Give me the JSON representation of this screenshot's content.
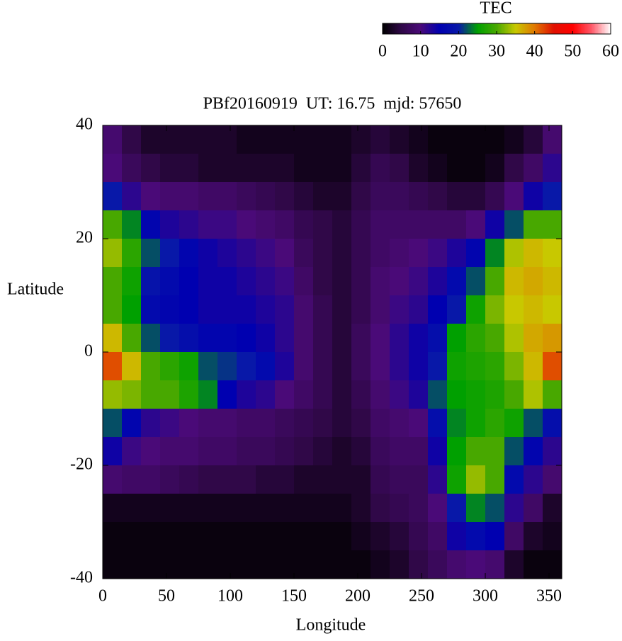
{
  "chart_data": {
    "type": "heatmap",
    "title": "PBf20160919  UT: 16.75  mjd: 57650",
    "x_label": "Longitude",
    "y_label": "Latitude",
    "colorbar_label": "TEC",
    "x": [
      7.5,
      22.5,
      37.5,
      52.5,
      67.5,
      82.5,
      97.5,
      112.5,
      127.5,
      142.5,
      157.5,
      172.5,
      187.5,
      202.5,
      217.5,
      232.5,
      247.5,
      262.5,
      277.5,
      292.5,
      307.5,
      322.5,
      337.5,
      352.5
    ],
    "y": [
      37.5,
      32.5,
      27.5,
      22.5,
      17.5,
      12.5,
      7.5,
      2.5,
      -2.5,
      -7.5,
      -12.5,
      -17.5,
      -22.5,
      -27.5,
      -32.5,
      -37.5
    ],
    "z": [
      [
        9,
        5,
        3,
        3,
        3,
        3,
        3,
        2,
        2,
        2,
        2,
        2,
        2,
        3,
        4,
        3,
        2,
        1,
        1,
        1,
        1,
        2,
        4,
        9
      ],
      [
        10,
        7,
        5,
        4,
        4,
        3,
        3,
        3,
        3,
        3,
        2,
        2,
        2,
        4,
        6,
        5,
        3,
        2,
        1,
        1,
        2,
        5,
        8,
        12
      ],
      [
        20,
        12,
        10,
        9,
        9,
        8,
        8,
        7,
        6,
        5,
        4,
        3,
        3,
        5,
        7,
        7,
        6,
        5,
        4,
        4,
        6,
        10,
        14,
        20
      ],
      [
        30,
        24,
        16,
        13,
        12,
        11,
        11,
        10,
        9,
        8,
        6,
        5,
        4,
        6,
        8,
        8,
        8,
        8,
        8,
        10,
        14,
        22,
        30,
        30
      ],
      [
        33,
        28,
        22,
        20,
        16,
        14,
        13,
        12,
        11,
        10,
        7,
        5,
        4,
        6,
        8,
        9,
        10,
        11,
        13,
        16,
        24,
        34,
        36,
        35
      ],
      [
        30,
        26,
        19,
        17,
        15,
        14,
        14,
        13,
        12,
        11,
        8,
        5,
        4,
        6,
        9,
        10,
        11,
        13,
        17,
        22,
        30,
        36,
        37,
        36
      ],
      [
        30,
        25,
        17,
        16,
        15,
        14,
        14,
        14,
        13,
        12,
        9,
        6,
        4,
        6,
        9,
        11,
        12,
        15,
        20,
        26,
        32,
        35,
        36,
        35
      ],
      [
        36,
        30,
        22,
        20,
        18,
        16,
        16,
        15,
        14,
        12,
        9,
        6,
        4,
        7,
        10,
        12,
        14,
        18,
        25,
        28,
        30,
        34,
        37,
        38
      ],
      [
        42,
        36,
        30,
        28,
        26,
        22,
        21,
        20,
        17,
        13,
        9,
        6,
        4,
        7,
        10,
        12,
        14,
        20,
        26,
        27,
        28,
        32,
        36,
        42
      ],
      [
        33,
        32,
        30,
        30,
        27,
        24,
        15,
        13,
        12,
        10,
        8,
        6,
        4,
        6,
        9,
        11,
        13,
        22,
        25,
        26,
        27,
        30,
        34,
        30
      ],
      [
        22,
        16,
        12,
        11,
        10,
        9,
        9,
        8,
        8,
        7,
        6,
        5,
        4,
        5,
        8,
        9,
        10,
        18,
        24,
        26,
        28,
        26,
        22,
        18
      ],
      [
        14,
        11,
        10,
        9,
        9,
        8,
        8,
        7,
        7,
        6,
        5,
        4,
        3,
        4,
        7,
        8,
        8,
        14,
        25,
        30,
        30,
        22,
        16,
        12
      ],
      [
        9,
        8,
        8,
        7,
        6,
        5,
        5,
        5,
        4,
        4,
        3,
        3,
        3,
        3,
        6,
        7,
        7,
        12,
        26,
        33,
        30,
        17,
        12,
        9
      ],
      [
        2,
        2,
        2,
        2,
        2,
        2,
        2,
        2,
        2,
        2,
        2,
        2,
        2,
        3,
        5,
        6,
        7,
        10,
        20,
        24,
        22,
        12,
        8,
        3
      ],
      [
        1,
        1,
        1,
        1,
        1,
        1,
        1,
        1,
        1,
        1,
        1,
        1,
        1,
        2,
        3,
        4,
        6,
        8,
        14,
        17,
        15,
        8,
        3,
        2
      ],
      [
        1,
        1,
        1,
        1,
        1,
        1,
        1,
        1,
        1,
        1,
        1,
        1,
        1,
        1,
        2,
        3,
        5,
        7,
        9,
        10,
        9,
        3,
        1,
        1
      ]
    ],
    "xlim": [
      0,
      360
    ],
    "xticks": [
      0,
      50,
      100,
      150,
      200,
      250,
      300,
      350
    ],
    "ylim": [
      -40,
      40
    ],
    "yticks": [
      -40,
      -20,
      0,
      20,
      40
    ],
    "zlim": [
      0,
      60
    ],
    "zticks": [
      0,
      10,
      20,
      30,
      40,
      50,
      60
    ],
    "colormap": [
      "#000000",
      "#300848",
      "#4a0a78",
      "#0000b0",
      "#0818a8",
      "#00a000",
      "#48a800",
      "#c8c800",
      "#e07800",
      "#e01000",
      "#ff0000",
      "#ff5a6a",
      "#ffffff"
    ]
  }
}
